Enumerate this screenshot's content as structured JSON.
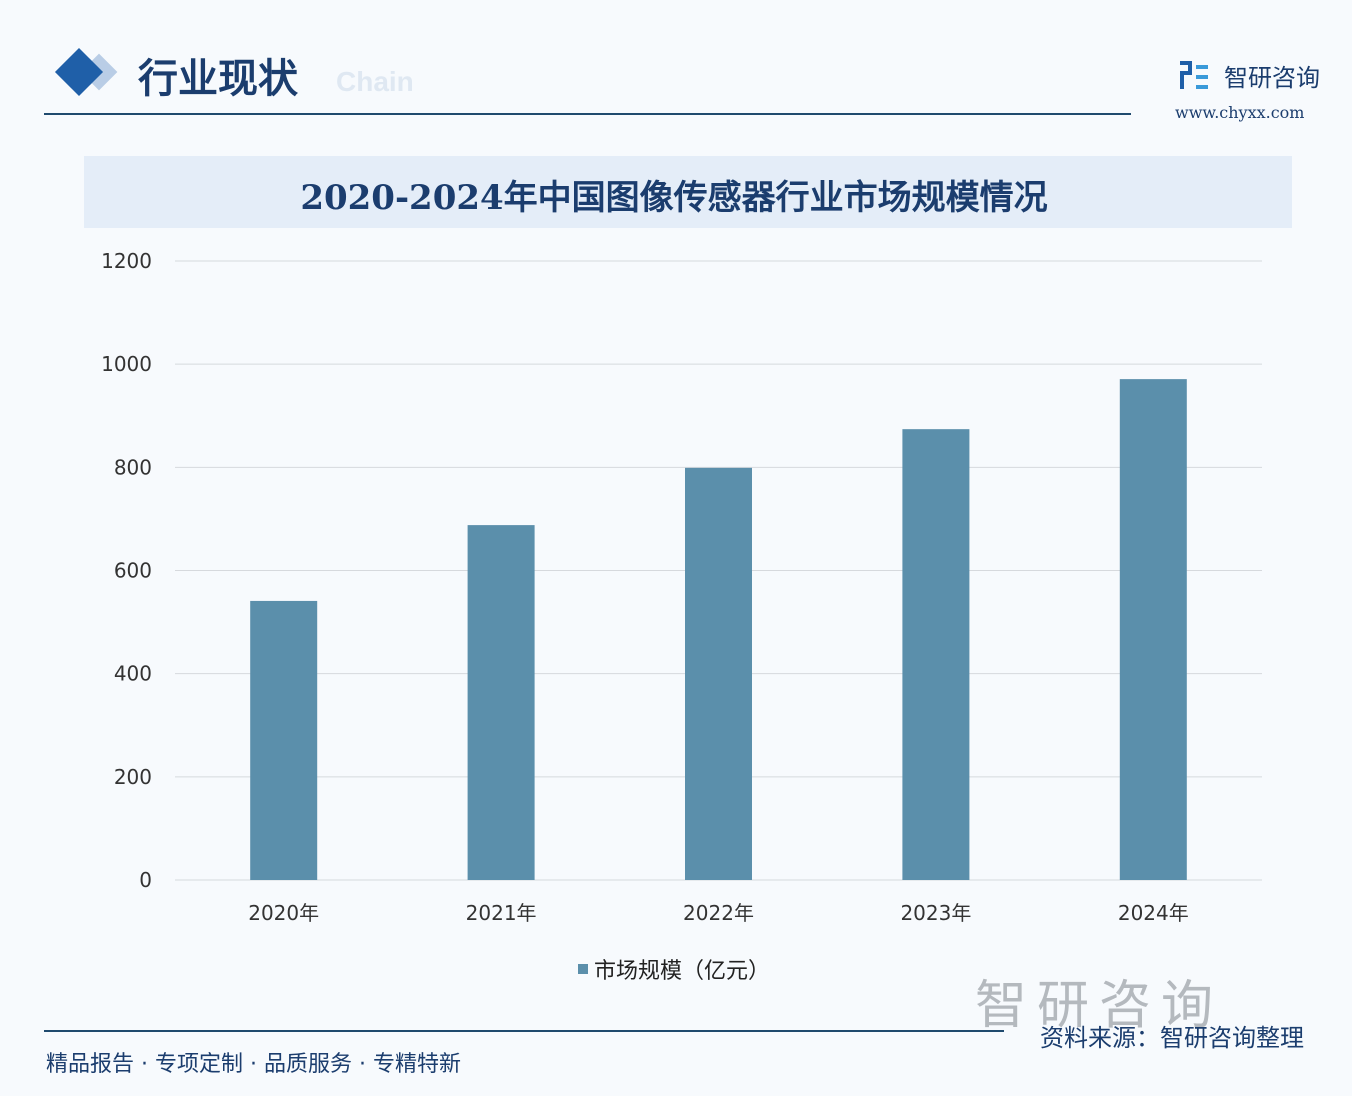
{
  "header": {
    "section_title": "行业现状",
    "section_subtitle": "Chain",
    "brand_name": "智研咨询",
    "brand_url": "www.chyxx.com"
  },
  "footer": {
    "slogan": "精品报告 · 专项定制 · 品质服务 · 专精特新",
    "source": "资料来源：智研咨询整理",
    "logo_text": "智研咨询"
  },
  "colors": {
    "bar": "#5b8fab",
    "accent": "#1f5fa8",
    "text": "#1b3d6e"
  },
  "chart_data": {
    "type": "bar",
    "title": "2020-2024年中国图像传感器行业市场规模情况",
    "categories": [
      "2020年",
      "2021年",
      "2022年",
      "2023年",
      "2024年"
    ],
    "series": [
      {
        "name": "市场规模（亿元）",
        "values": [
          541,
          688,
          799,
          874,
          971
        ]
      }
    ],
    "yticks": [
      "0",
      "200",
      "400",
      "600",
      "800",
      "1000",
      "1200"
    ],
    "ylim": [
      0,
      1200
    ],
    "grid": true,
    "legend": "bottom-center",
    "xlabel": "",
    "ylabel": ""
  }
}
